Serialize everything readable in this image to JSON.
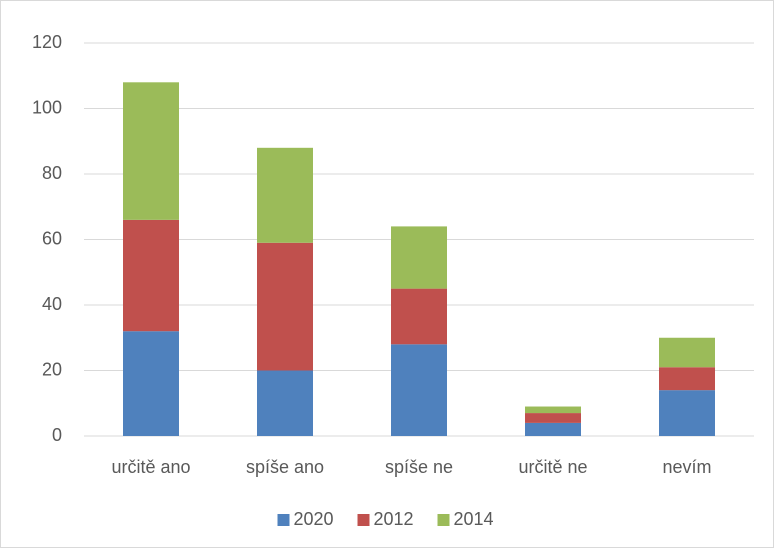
{
  "chart_data": {
    "type": "stacked_bar",
    "categories": [
      "určitě ano",
      "spíše ano",
      "spíše ne",
      "určitě ne",
      "nevím"
    ],
    "series": [
      {
        "name": "2020",
        "color": "#4f81bd",
        "values": [
          32,
          20,
          28,
          4,
          14
        ]
      },
      {
        "name": "2012",
        "color": "#c0504d",
        "values": [
          34,
          39,
          17,
          3,
          7
        ]
      },
      {
        "name": "2014",
        "color": "#9bbb59",
        "values": [
          42,
          29,
          19,
          2,
          9
        ]
      }
    ],
    "ylim": [
      0,
      120
    ],
    "yticks": [
      0,
      20,
      40,
      60,
      80,
      100,
      120
    ],
    "grid": true,
    "legend": "bottom"
  }
}
